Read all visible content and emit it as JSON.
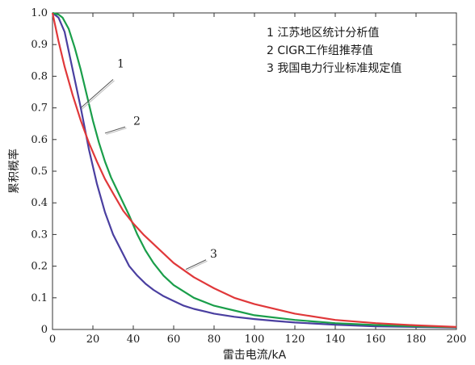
{
  "chart_data": {
    "type": "line",
    "xlabel": "雷击电流/kA",
    "ylabel": "累积概率",
    "xlim": [
      0,
      200
    ],
    "ylim": [
      0,
      1.0
    ],
    "x_ticks": [
      0,
      20,
      40,
      60,
      80,
      100,
      120,
      140,
      160,
      180,
      200
    ],
    "y_ticks": [
      0,
      0.1,
      0.2,
      0.3,
      0.4,
      0.5,
      0.6,
      0.7,
      0.8,
      0.9,
      1.0
    ],
    "legend": {
      "placement": "top-right",
      "entries": [
        "1 江苏地区统计分析值",
        "2 CIGR工作组推荐值",
        "3 我国电力行业标准规定值"
      ]
    },
    "series": [
      {
        "name": "1",
        "color": "#4a3fa0",
        "x": [
          0,
          3,
          6,
          10,
          14,
          18,
          22,
          26,
          30,
          34,
          38,
          42,
          46,
          50,
          55,
          60,
          65,
          70,
          80,
          90,
          100,
          110,
          120,
          140,
          160,
          180,
          200
        ],
        "values": [
          1.0,
          0.985,
          0.94,
          0.82,
          0.7,
          0.57,
          0.46,
          0.37,
          0.3,
          0.25,
          0.2,
          0.17,
          0.145,
          0.125,
          0.105,
          0.09,
          0.075,
          0.065,
          0.05,
          0.04,
          0.033,
          0.027,
          0.022,
          0.015,
          0.01,
          0.008,
          0.006
        ]
      },
      {
        "name": "2",
        "color": "#1a9e4a",
        "x": [
          0,
          3,
          5,
          8,
          11,
          14,
          17,
          20,
          23,
          26,
          29,
          32,
          35,
          38,
          42,
          46,
          50,
          55,
          60,
          70,
          80,
          90,
          100,
          120,
          140,
          160,
          180,
          200
        ],
        "values": [
          1.0,
          0.995,
          0.985,
          0.95,
          0.89,
          0.82,
          0.74,
          0.66,
          0.59,
          0.53,
          0.48,
          0.44,
          0.4,
          0.36,
          0.3,
          0.25,
          0.21,
          0.17,
          0.14,
          0.1,
          0.075,
          0.06,
          0.045,
          0.03,
          0.02,
          0.014,
          0.01,
          0.007
        ]
      },
      {
        "name": "3",
        "color": "#e0383a",
        "x": [
          0,
          3,
          6,
          10,
          14,
          18,
          22,
          26,
          30,
          35,
          40,
          45,
          50,
          60,
          70,
          80,
          90,
          100,
          120,
          140,
          160,
          180,
          200
        ],
        "values": [
          1.0,
          0.91,
          0.83,
          0.74,
          0.66,
          0.59,
          0.53,
          0.475,
          0.43,
          0.375,
          0.335,
          0.3,
          0.27,
          0.21,
          0.165,
          0.13,
          0.1,
          0.08,
          0.05,
          0.03,
          0.02,
          0.013,
          0.008
        ]
      }
    ],
    "callouts": [
      {
        "label": "1",
        "series": "1"
      },
      {
        "label": "2",
        "series": "2"
      },
      {
        "label": "3",
        "series": "3"
      }
    ]
  }
}
